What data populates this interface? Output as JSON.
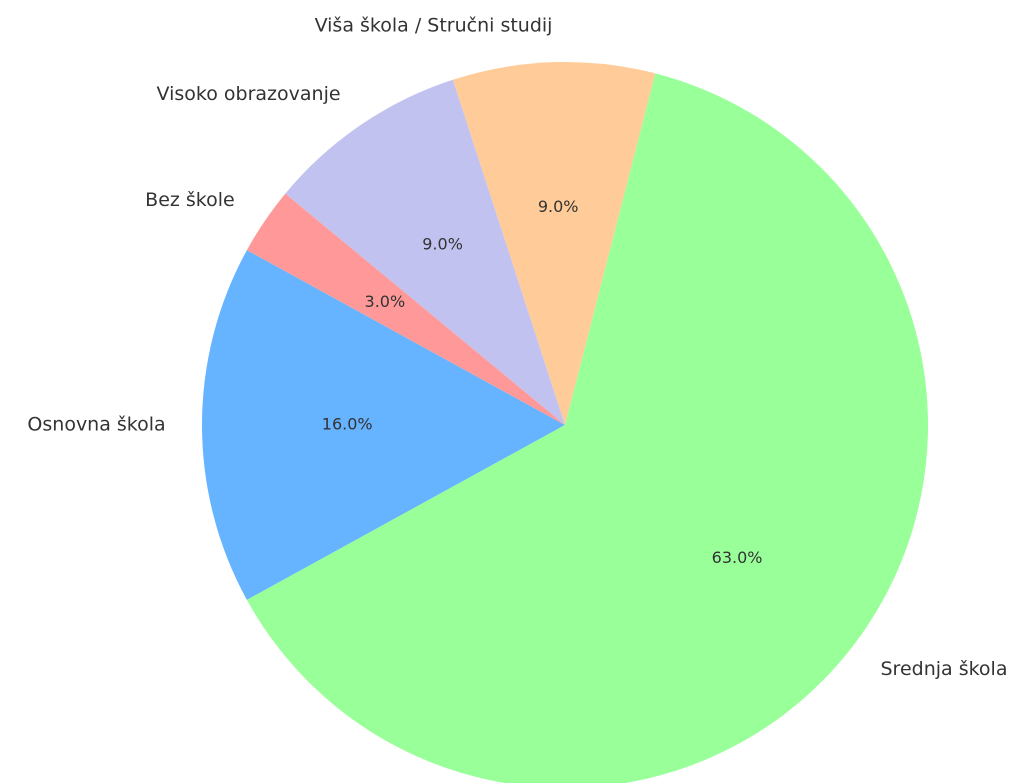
{
  "chart_data": {
    "type": "pie",
    "categories": [
      "Osnovna škola",
      "Srednja škola",
      "Viša škola / Stručni studij",
      "Visoko obrazovanje",
      "Bez škole"
    ],
    "values": [
      16,
      63,
      9,
      9,
      3
    ],
    "value_labels": [
      "16.0%",
      "63.0%",
      "9.0%",
      "9.0%",
      "3.0%"
    ],
    "colors": [
      "#66b3ff",
      "#99ff99",
      "#ffcc99",
      "#c2c2f0",
      "#ff9999"
    ],
    "start_angle": 151.2,
    "counterclockwise": true
  }
}
